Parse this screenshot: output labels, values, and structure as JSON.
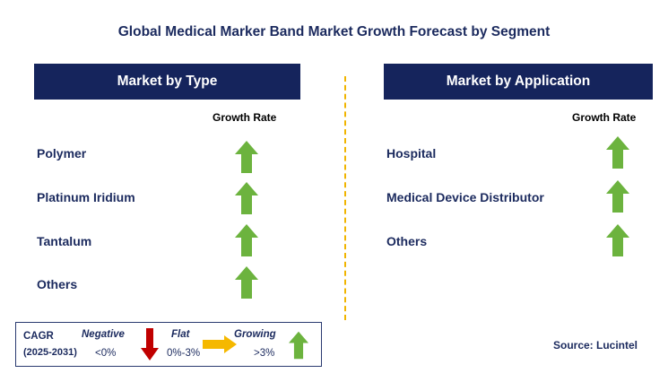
{
  "title": "Global Medical Marker Band Market Growth Forecast by Segment",
  "left_panel": {
    "header": "Market by Type",
    "growth_rate_label": "Growth Rate",
    "rows": [
      {
        "label": "Polymer",
        "trend": "growing"
      },
      {
        "label": "Platinum Iridium",
        "trend": "growing"
      },
      {
        "label": "Tantalum",
        "trend": "growing"
      },
      {
        "label": "Others",
        "trend": "growing"
      }
    ]
  },
  "right_panel": {
    "header": "Market by Application",
    "growth_rate_label": "Growth Rate",
    "rows": [
      {
        "label": "Hospital",
        "trend": "growing"
      },
      {
        "label": "Medical Device Distributor",
        "trend": "growing"
      },
      {
        "label": "Others",
        "trend": "growing"
      }
    ]
  },
  "legend": {
    "cagr_label": "CAGR",
    "period": "(2025-2031)",
    "negative_label": "Negative",
    "negative_range": "<0%",
    "flat_label": "Flat",
    "flat_range": "0%-3%",
    "growing_label": "Growing",
    "growing_range": ">3%"
  },
  "source": "Source: Lucintel",
  "colors": {
    "header_bg": "#15245c",
    "growing_arrow": "#6cb33e",
    "negative_arrow": "#c00000",
    "flat_arrow": "#f5b800",
    "divider": "#f0b400"
  }
}
